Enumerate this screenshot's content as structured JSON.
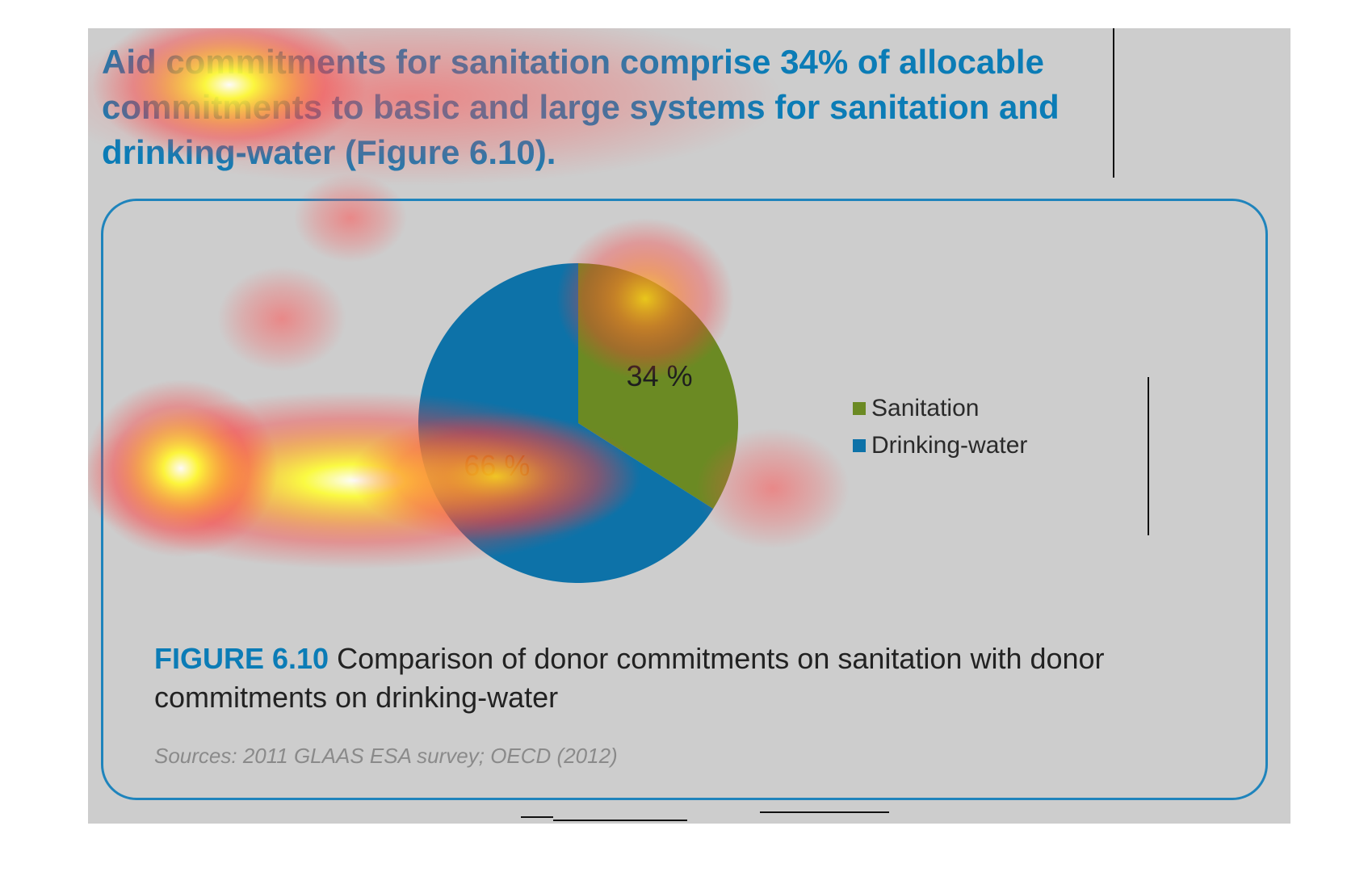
{
  "headline": {
    "lines": [
      "Aid commitments for sanitation comprise 34% of allocable",
      "commitments to basic and large systems for sanitation and",
      "drinking-water (Figure 6.10)."
    ]
  },
  "figure": {
    "label": "FIGURE 6.10",
    "caption": " Comparison of donor commitments on sanitation with donor commitments on drinking-water",
    "sources": "Sources: 2011 GLAAS ESA survey; OECD (2012)"
  },
  "chart_data": {
    "type": "pie",
    "title": "",
    "slices": [
      {
        "name": "Sanitation",
        "value": 34,
        "label": "34 %",
        "color": "#6b8a23"
      },
      {
        "name": "Drinking-water",
        "value": 66,
        "label": "66 %",
        "color": "#0d72a8"
      }
    ],
    "legend_position": "right"
  },
  "colors": {
    "accent": "#0b7cb6",
    "panel_border": "#1f84bc",
    "background": "#cdcdcd"
  }
}
